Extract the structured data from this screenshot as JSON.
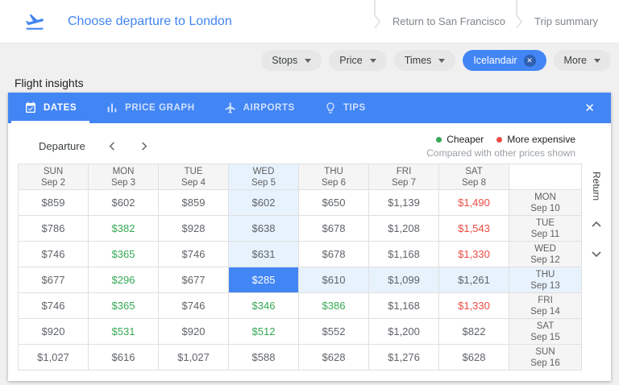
{
  "header": {
    "title": "Choose departure to London",
    "breadcrumbs": [
      "Return to San Francisco",
      "Trip summary"
    ]
  },
  "filters": {
    "chips": [
      {
        "label": "Stops"
      },
      {
        "label": "Price"
      },
      {
        "label": "Times"
      },
      {
        "label": "Icelandair",
        "active": true,
        "remove_icon": "close-circle-icon"
      },
      {
        "label": "More"
      }
    ]
  },
  "insights": {
    "label": "Flight insights",
    "tabs": [
      {
        "label": "DATES",
        "icon": "calendar-check-icon",
        "active": true
      },
      {
        "label": "PRICE GRAPH",
        "icon": "bar-chart-icon",
        "active": false
      },
      {
        "label": "AIRPORTS",
        "icon": "airplane-icon",
        "active": false
      },
      {
        "label": "TIPS",
        "icon": "lightbulb-icon",
        "active": false
      }
    ],
    "close_icon": "close-icon"
  },
  "dates_panel": {
    "axis_label": "Departure",
    "return_label": "Return",
    "legend": {
      "cheaper": "Cheaper",
      "expensive": "More expensive",
      "note": "Compared with other prices shown"
    },
    "columns": [
      {
        "day": "SUN",
        "date": "Sep 2",
        "hl": false
      },
      {
        "day": "MON",
        "date": "Sep 3",
        "hl": false
      },
      {
        "day": "TUE",
        "date": "Sep 4",
        "hl": false
      },
      {
        "day": "WED",
        "date": "Sep 5",
        "hl": true
      },
      {
        "day": "THU",
        "date": "Sep 6",
        "hl": false
      },
      {
        "day": "FRI",
        "date": "Sep 7",
        "hl": false
      },
      {
        "day": "SAT",
        "date": "Sep 8",
        "hl": false
      }
    ],
    "rows": [
      {
        "label": {
          "day": "MON",
          "date": "Sep 10",
          "hl": false
        },
        "cells": [
          {
            "price": "$859"
          },
          {
            "price": "$602"
          },
          {
            "price": "$859"
          },
          {
            "price": "$602",
            "bg": "hl"
          },
          {
            "price": "$650"
          },
          {
            "price": "$1,139"
          },
          {
            "price": "$1,490",
            "tone": "expensive"
          }
        ]
      },
      {
        "label": {
          "day": "TUE",
          "date": "Sep 11",
          "hl": false
        },
        "cells": [
          {
            "price": "$786"
          },
          {
            "price": "$382",
            "tone": "cheaper"
          },
          {
            "price": "$928"
          },
          {
            "price": "$638",
            "bg": "hl"
          },
          {
            "price": "$678"
          },
          {
            "price": "$1,208"
          },
          {
            "price": "$1,543",
            "tone": "expensive"
          }
        ]
      },
      {
        "label": {
          "day": "WED",
          "date": "Sep 12",
          "hl": false
        },
        "cells": [
          {
            "price": "$746"
          },
          {
            "price": "$365",
            "tone": "cheaper"
          },
          {
            "price": "$746"
          },
          {
            "price": "$631",
            "bg": "hl"
          },
          {
            "price": "$678"
          },
          {
            "price": "$1,168"
          },
          {
            "price": "$1,330",
            "tone": "expensive"
          }
        ]
      },
      {
        "label": {
          "day": "THU",
          "date": "Sep 13",
          "hl": true
        },
        "cells": [
          {
            "price": "$677"
          },
          {
            "price": "$296",
            "tone": "cheaper"
          },
          {
            "price": "$677"
          },
          {
            "price": "$285",
            "bg": "sel"
          },
          {
            "price": "$610",
            "bg": "hl"
          },
          {
            "price": "$1,099",
            "bg": "hl"
          },
          {
            "price": "$1,261",
            "bg": "hl"
          }
        ]
      },
      {
        "label": {
          "day": "FRI",
          "date": "Sep 14",
          "hl": false
        },
        "cells": [
          {
            "price": "$746"
          },
          {
            "price": "$365",
            "tone": "cheaper"
          },
          {
            "price": "$746"
          },
          {
            "price": "$346",
            "tone": "cheaper"
          },
          {
            "price": "$386",
            "tone": "cheaper"
          },
          {
            "price": "$1,168"
          },
          {
            "price": "$1,330",
            "tone": "expensive"
          }
        ]
      },
      {
        "label": {
          "day": "SAT",
          "date": "Sep 15",
          "hl": false
        },
        "cells": [
          {
            "price": "$920"
          },
          {
            "price": "$531",
            "tone": "cheaper"
          },
          {
            "price": "$920"
          },
          {
            "price": "$512",
            "tone": "cheaper"
          },
          {
            "price": "$552"
          },
          {
            "price": "$1,200"
          },
          {
            "price": "$822"
          }
        ]
      },
      {
        "label": {
          "day": "SUN",
          "date": "Sep 16",
          "hl": false
        },
        "cells": [
          {
            "price": "$1,027"
          },
          {
            "price": "$616"
          },
          {
            "price": "$1,027"
          },
          {
            "price": "$588"
          },
          {
            "price": "$628"
          },
          {
            "price": "$1,276"
          },
          {
            "price": "$628"
          }
        ]
      }
    ]
  },
  "colors": {
    "accent_blue": "#4285f4",
    "cheaper_green": "#34a853",
    "expensive_red": "#ea4c43",
    "highlight_blue": "#e7f2fd",
    "header_gray": "#f5f5f5"
  }
}
